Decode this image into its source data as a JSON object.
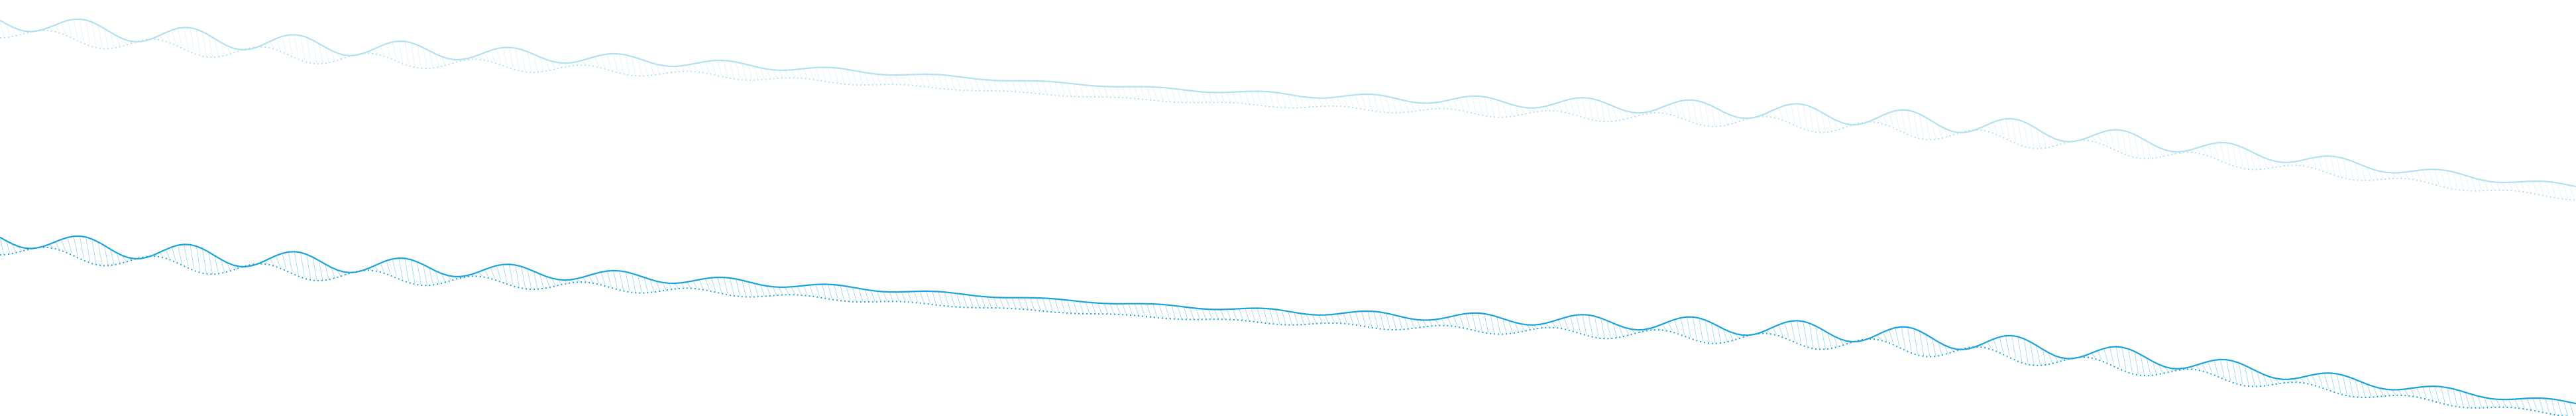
{
  "waves": [
    {
      "name": "upper-ribbon",
      "color": "#a8dcf0",
      "opacity": 0.85
    },
    {
      "name": "lower-ribbon",
      "color": "#1aa3dc",
      "opacity": 1.0
    }
  ]
}
